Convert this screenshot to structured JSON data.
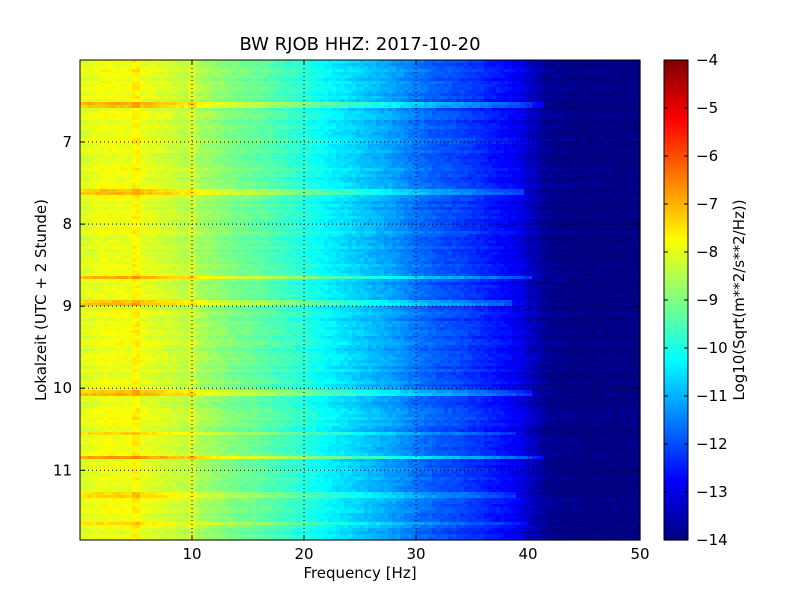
{
  "chart_data": {
    "type": "heatmap",
    "title": "BW RJOB HHZ: 2017-10-20",
    "xlabel": "Frequency [Hz]",
    "ylabel": "Lokalzeit (UTC + 2 Stunde)",
    "colorbar_label": "Log10(Sqrt(m**2/s**2/Hz))",
    "xlim": [
      0,
      50
    ],
    "ylim": [
      11.85,
      6.0
    ],
    "y_inverted": true,
    "x_ticks": [
      10,
      20,
      30,
      40,
      50
    ],
    "x_tick_labels": [
      "10",
      "20",
      "30",
      "40",
      "50"
    ],
    "y_ticks": [
      7,
      8,
      9,
      10,
      11
    ],
    "y_tick_labels": [
      "7",
      "8",
      "9",
      "10",
      "11"
    ],
    "colorbar_range": [
      -14,
      -4
    ],
    "colorbar_ticks": [
      -4,
      -5,
      -6,
      -7,
      -8,
      -9,
      -10,
      -11,
      -12,
      -13,
      -14
    ],
    "colorbar_tick_labels": [
      "−4",
      "−5",
      "−6",
      "−7",
      "−8",
      "−9",
      "−10",
      "−11",
      "−12",
      "−13",
      "−14"
    ],
    "colormap": "jet",
    "grid": true,
    "spectrum_profile": {
      "frequency_hz": [
        0,
        2,
        4,
        6,
        8,
        10,
        12,
        14,
        16,
        18,
        20,
        22,
        24,
        26,
        28,
        30,
        32,
        34,
        36,
        38,
        39.5,
        40.5,
        41.5,
        44,
        50
      ],
      "log10_psd": [
        -8.1,
        -7.9,
        -7.9,
        -8.0,
        -8.2,
        -8.5,
        -8.8,
        -9.1,
        -9.3,
        -9.6,
        -9.9,
        -10.3,
        -10.6,
        -10.9,
        -11.2,
        -11.6,
        -11.9,
        -12.1,
        -12.4,
        -12.7,
        -13.0,
        -13.4,
        -13.8,
        -14.0,
        -14.0
      ]
    },
    "time_bands": [
      {
        "time": 6.55,
        "fmax": 41.5,
        "boost": 0.9
      },
      {
        "time": 7.6,
        "fmax": 39.5,
        "boost": 0.8
      },
      {
        "time": 8.65,
        "fmax": 40.5,
        "boost": 0.9
      },
      {
        "time": 8.95,
        "fmax": 38.5,
        "boost": 0.7
      },
      {
        "time": 10.05,
        "fmax": 40.5,
        "boost": 0.8
      },
      {
        "time": 10.55,
        "fmax": 39.0,
        "boost": 0.6
      },
      {
        "time": 10.85,
        "fmax": 41.5,
        "boost": 1.1
      },
      {
        "time": 11.3,
        "fmax": 39.0,
        "boost": 0.6
      },
      {
        "time": 11.65,
        "fmax": 40.0,
        "boost": 0.6
      }
    ],
    "line_frequencies_hz": [
      5.0,
      10.0
    ]
  }
}
